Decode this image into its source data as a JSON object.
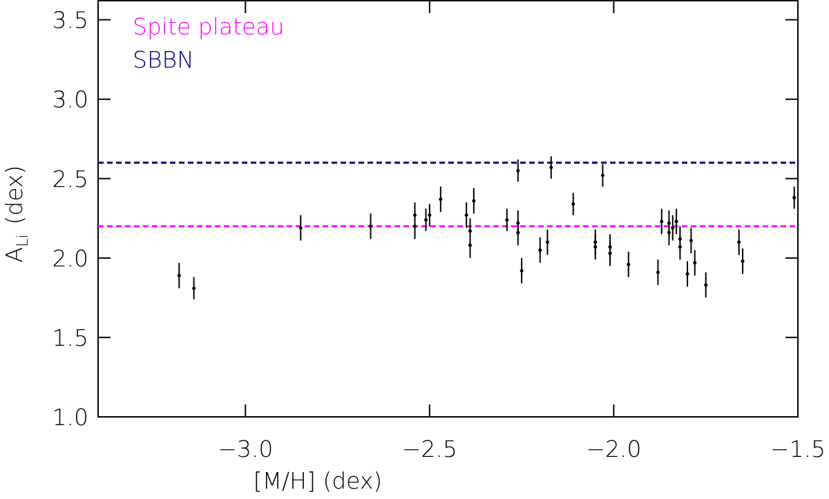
{
  "chart_data": {
    "type": "scatter",
    "x_label": "[M/H] (dex)",
    "y_label": "A",
    "y_label_sub": "Li",
    "y_label_unit": "(dex)",
    "xlim": [
      -3.4,
      -1.5
    ],
    "ylim": [
      1.0,
      3.62
    ],
    "xticks": [
      {
        "value": -3.0,
        "label": "−3.0"
      },
      {
        "value": -2.5,
        "label": "−2.5"
      },
      {
        "value": -2.0,
        "label": "−2.0"
      },
      {
        "value": -1.5,
        "label": "−1.5"
      }
    ],
    "yticks": [
      {
        "value": 1.0,
        "label": "1.0"
      },
      1.5,
      {
        "value": 2.0,
        "label": "2.0"
      },
      2.5,
      {
        "value": 3.0,
        "label": "3.0"
      },
      3.5
    ],
    "color": "#000000",
    "x": [
      -3.18,
      -3.14,
      -2.85,
      -2.66,
      -2.54,
      -2.54,
      -2.51,
      -2.5,
      -2.47,
      -2.4,
      -2.39,
      -2.39,
      -2.38,
      -2.29,
      -2.26,
      -2.26,
      -2.26,
      -2.25,
      -2.2,
      -2.18,
      -2.17,
      -2.11,
      -2.03,
      -2.05,
      -2.05,
      -2.01,
      -2.01,
      -1.96,
      -1.88,
      -1.87,
      -1.85,
      -1.85,
      -1.84,
      -1.83,
      -1.82,
      -1.82,
      -1.8,
      -1.79,
      -1.78,
      -1.75,
      -1.66,
      -1.65,
      -1.51
    ],
    "values": [
      1.89,
      1.81,
      2.19,
      2.2,
      2.27,
      2.2,
      2.24,
      2.27,
      2.37,
      2.27,
      2.17,
      2.08,
      2.36,
      2.24,
      2.22,
      2.16,
      2.55,
      1.92,
      2.05,
      2.1,
      2.57,
      2.34,
      2.52,
      2.1,
      2.07,
      2.07,
      2.03,
      1.96,
      1.91,
      2.23,
      2.22,
      2.16,
      2.19,
      2.23,
      2.07,
      2.12,
      1.9,
      2.11,
      1.97,
      1.83,
      2.1,
      1.98,
      2.38
    ],
    "errors": [
      0.08,
      0.07,
      0.08,
      0.08,
      0.08,
      0.08,
      0.07,
      0.07,
      0.08,
      0.08,
      0.08,
      0.08,
      0.08,
      0.07,
      0.08,
      0.08,
      0.07,
      0.08,
      0.08,
      0.08,
      0.07,
      0.07,
      0.07,
      0.08,
      0.08,
      0.08,
      0.08,
      0.08,
      0.08,
      0.08,
      0.08,
      0.08,
      0.08,
      0.08,
      0.08,
      0.08,
      0.08,
      0.08,
      0.08,
      0.08,
      0.08,
      0.08,
      0.07
    ],
    "lines": [
      {
        "name": "Spite plateau",
        "color": "#ff00ff",
        "y": 2.2
      },
      {
        "name": "SBBN",
        "color": "#00007f",
        "y": 2.6
      }
    ]
  }
}
